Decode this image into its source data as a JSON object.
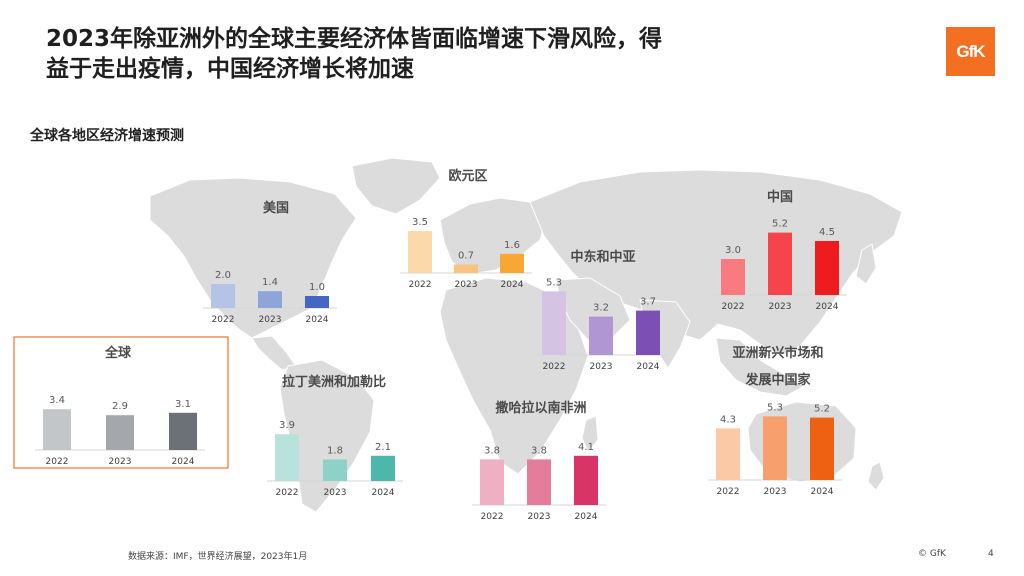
{
  "header": {
    "title_line1": "2023年除亚洲外的全球主要经济体皆面临增速下滑风险，得",
    "title_line2": "益于走出疫情，中国经济增长将加速",
    "logo_text": "GfK"
  },
  "subtitle": "全球各地区经济增速预测",
  "footer": {
    "source": "数据来源：IMF，世界经济展望，2023年1月",
    "copyright": "© GfK",
    "page": "4"
  },
  "colors": {
    "map": "#dcdcdc",
    "global_frame": "#f07d3a",
    "logo": "#f36f21"
  },
  "chart_data": [
    {
      "type": "bar",
      "title": "全球",
      "categories": [
        "2022",
        "2023",
        "2024"
      ],
      "values": [
        3.4,
        2.9,
        3.1
      ],
      "colors": [
        "#c3c6c9",
        "#a4a8ac",
        "#6b7176"
      ]
    },
    {
      "type": "bar",
      "title": "美国",
      "categories": [
        "2022",
        "2023",
        "2024"
      ],
      "values": [
        2.0,
        1.4,
        1.0
      ],
      "colors": [
        "#b4c3e6",
        "#8ea5d9",
        "#4467c4"
      ]
    },
    {
      "type": "bar",
      "title": "欧元区",
      "categories": [
        "2022",
        "2023",
        "2024"
      ],
      "values": [
        3.5,
        0.7,
        1.6
      ],
      "colors": [
        "#fbd9ab",
        "#f9c47f",
        "#f7a733"
      ]
    },
    {
      "type": "bar",
      "title": "中东和中亚",
      "categories": [
        "2022",
        "2023",
        "2024"
      ],
      "values": [
        5.3,
        3.2,
        3.7
      ],
      "colors": [
        "#d4c3e3",
        "#b196d4",
        "#7c4fb5"
      ]
    },
    {
      "type": "bar",
      "title": "中国",
      "categories": [
        "2022",
        "2023",
        "2024"
      ],
      "values": [
        3.0,
        5.2,
        4.5
      ],
      "colors": [
        "#f97a7f",
        "#f5444b",
        "#ee1b1f"
      ]
    },
    {
      "type": "bar",
      "title": "拉丁美洲和加勒比",
      "categories": [
        "2022",
        "2023",
        "2024"
      ],
      "values": [
        3.9,
        1.8,
        2.1
      ],
      "colors": [
        "#b8e2dc",
        "#8ed1c7",
        "#4cb7aa"
      ]
    },
    {
      "type": "bar",
      "title": "撒哈拉以南非洲",
      "categories": [
        "2022",
        "2023",
        "2024"
      ],
      "values": [
        3.8,
        3.8,
        4.1
      ],
      "colors": [
        "#eeb0c2",
        "#e47d9c",
        "#d83466"
      ]
    },
    {
      "type": "bar",
      "title": "亚洲新兴市场和发展中国家",
      "categories": [
        "2022",
        "2023",
        "2024"
      ],
      "values": [
        4.3,
        5.3,
        5.2
      ],
      "colors": [
        "#fbc9a6",
        "#f8a06d",
        "#ee6113"
      ]
    }
  ]
}
